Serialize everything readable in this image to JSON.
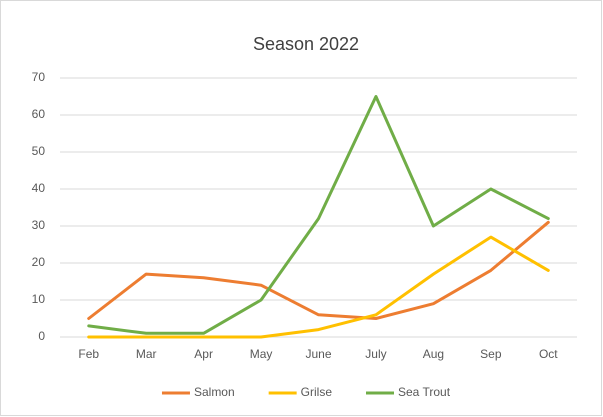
{
  "chart_data": {
    "type": "line",
    "title": "Season 2022",
    "categories": [
      "Feb",
      "Mar",
      "Apr",
      "May",
      "June",
      "July",
      "Aug",
      "Sep",
      "Oct"
    ],
    "series": [
      {
        "name": "Salmon",
        "color": "#ED7D31",
        "values": [
          5,
          17,
          16,
          14,
          6,
          5,
          9,
          18,
          31
        ]
      },
      {
        "name": "Grilse",
        "color": "#FFC000",
        "values": [
          0,
          0,
          0,
          0,
          2,
          6,
          17,
          27,
          18
        ]
      },
      {
        "name": "Sea Trout",
        "color": "#70AD47",
        "values": [
          3,
          1,
          1,
          10,
          32,
          65,
          30,
          40,
          32
        ]
      }
    ],
    "ylim": [
      0,
      70
    ],
    "yticks": [
      0,
      10,
      20,
      30,
      40,
      50,
      60,
      70
    ],
    "grid": true,
    "legend": "bottom"
  }
}
